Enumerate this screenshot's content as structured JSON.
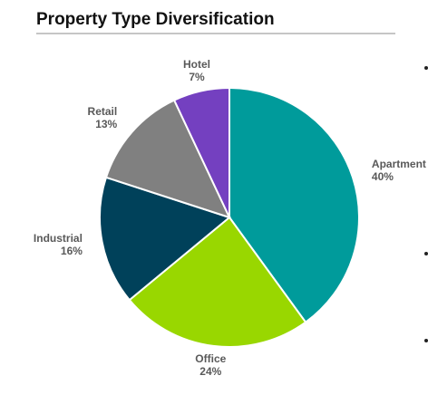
{
  "chart_data": {
    "type": "pie",
    "title": "Property Type Diversification",
    "categories": [
      "Apartment",
      "Office",
      "Industrial",
      "Retail",
      "Hotel"
    ],
    "values": [
      40,
      24,
      16,
      13,
      7
    ],
    "value_labels": [
      "40%",
      "24%",
      "16%",
      "13%",
      "7%"
    ],
    "colors": [
      "#009b9b",
      "#99d700",
      "#00415a",
      "#808080",
      "#7440c0"
    ]
  }
}
